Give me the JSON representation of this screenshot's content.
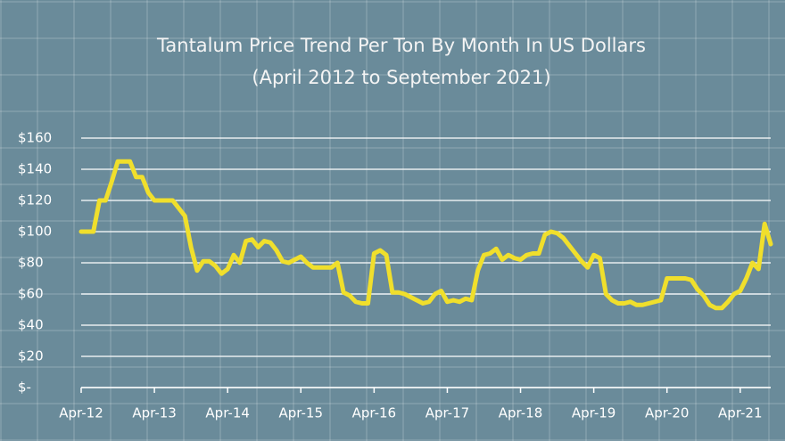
{
  "chart_data": {
    "type": "line",
    "title": "Tantalum Price Trend Per Ton By Month In US Dollars",
    "subtitle": "(April 2012 to September 2021)",
    "categories": [
      "Apr-12",
      null,
      null,
      null,
      null,
      null,
      null,
      null,
      null,
      null,
      null,
      null,
      "Apr-13",
      null,
      null,
      null,
      null,
      null,
      null,
      null,
      null,
      null,
      null,
      null,
      "Apr-14",
      null,
      null,
      null,
      null,
      null,
      null,
      null,
      null,
      null,
      null,
      null,
      "Apr-15",
      null,
      null,
      null,
      null,
      null,
      null,
      null,
      null,
      null,
      null,
      null,
      "Apr-16",
      null,
      null,
      null,
      null,
      null,
      null,
      null,
      null,
      null,
      null,
      null,
      "Apr-17",
      null,
      null,
      null,
      null,
      null,
      null,
      null,
      null,
      null,
      null,
      null,
      "Apr-18",
      null,
      null,
      null,
      null,
      null,
      null,
      null,
      null,
      null,
      null,
      null,
      "Apr-19",
      null,
      null,
      null,
      null,
      null,
      null,
      null,
      null,
      null,
      null,
      null,
      "Apr-20",
      null,
      null,
      null,
      null,
      null,
      null,
      null,
      null,
      null,
      null,
      null,
      "Apr-21",
      null,
      null,
      null,
      null,
      null
    ],
    "values": [
      100,
      100,
      100,
      120,
      120,
      132,
      145,
      145,
      145,
      135,
      135,
      125,
      120,
      120,
      120,
      120,
      115,
      110,
      90,
      75,
      81,
      81,
      78,
      73,
      76,
      85,
      80,
      94,
      95,
      90,
      94,
      93,
      88,
      81,
      80,
      82,
      84,
      80,
      77,
      77,
      77,
      77,
      80,
      61,
      59,
      55,
      54,
      54,
      86,
      88,
      85,
      61,
      61,
      60,
      58,
      56,
      54,
      55,
      60,
      62,
      55,
      56,
      55,
      57,
      56,
      75,
      85,
      86,
      89,
      82,
      85,
      83,
      82,
      85,
      86,
      86,
      98,
      100,
      99,
      96,
      91,
      86,
      81,
      77,
      85,
      83,
      60,
      56,
      54,
      54,
      55,
      53,
      53,
      54,
      55,
      56,
      70,
      70,
      70,
      70,
      69,
      63,
      59,
      53,
      51,
      51,
      55,
      60,
      62,
      70,
      80,
      76,
      105,
      92
    ],
    "color": "#f0df2c",
    "ylim": [
      0,
      160
    ],
    "yticks": [
      {
        "value": 0,
        "label": "$-"
      },
      {
        "value": 20,
        "label": "$20"
      },
      {
        "value": 40,
        "label": "$40"
      },
      {
        "value": 60,
        "label": "$60"
      },
      {
        "value": 80,
        "label": "$80"
      },
      {
        "value": 100,
        "label": "$100"
      },
      {
        "value": 120,
        "label": "$120"
      },
      {
        "value": 140,
        "label": "$140"
      },
      {
        "value": 160,
        "label": "$160"
      }
    ],
    "grid": true
  }
}
